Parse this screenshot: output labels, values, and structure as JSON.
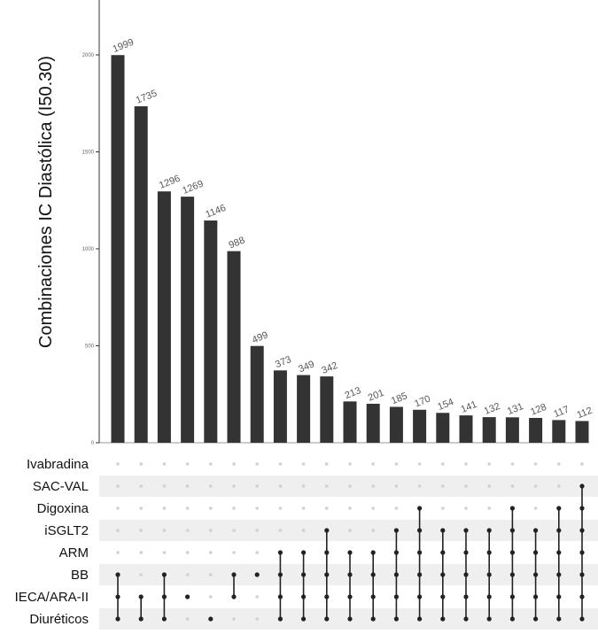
{
  "chart_data": {
    "type": "bar",
    "subtype": "upset",
    "ylabel": "Combinaciones IC Diastólica (I50.30)",
    "ylim": [
      0,
      2200
    ],
    "yticks": [
      0,
      500,
      1000,
      1500,
      2000
    ],
    "values": [
      1999,
      1735,
      1296,
      1269,
      1146,
      988,
      499,
      373,
      349,
      342,
      213,
      201,
      185,
      170,
      154,
      141,
      132,
      131,
      128,
      117,
      112
    ],
    "sets": [
      "Ivabradina",
      "SAC-VAL",
      "Digoxina",
      "iSGLT2",
      "ARM",
      "BB",
      "IECA/ARA-II",
      "Diuréticos"
    ],
    "combinations": [
      [
        "BB",
        "IECA/ARA-II",
        "Diuréticos"
      ],
      [
        "IECA/ARA-II",
        "Diuréticos"
      ],
      [
        "BB",
        "IECA/ARA-II",
        "Diuréticos"
      ],
      [
        "IECA/ARA-II"
      ],
      [
        "Diuréticos"
      ],
      [
        "BB",
        "IECA/ARA-II"
      ],
      [
        "BB"
      ],
      [
        "ARM",
        "BB",
        "IECA/ARA-II",
        "Diuréticos"
      ],
      [
        "ARM",
        "BB",
        "IECA/ARA-II",
        "Diuréticos"
      ],
      [
        "iSGLT2",
        "ARM",
        "BB",
        "IECA/ARA-II",
        "Diuréticos"
      ],
      [
        "ARM",
        "BB",
        "IECA/ARA-II",
        "Diuréticos"
      ],
      [
        "ARM",
        "BB",
        "IECA/ARA-II",
        "Diuréticos"
      ],
      [
        "iSGLT2",
        "ARM",
        "BB",
        "IECA/ARA-II",
        "Diuréticos"
      ],
      [
        "Digoxina",
        "iSGLT2",
        "ARM",
        "BB",
        "IECA/ARA-II",
        "Diuréticos"
      ],
      [
        "iSGLT2",
        "ARM",
        "BB",
        "IECA/ARA-II",
        "Diuréticos"
      ],
      [
        "iSGLT2",
        "ARM",
        "BB",
        "IECA/ARA-II",
        "Diuréticos"
      ],
      [
        "iSGLT2",
        "ARM",
        "BB",
        "IECA/ARA-II",
        "Diuréticos"
      ],
      [
        "Digoxina",
        "iSGLT2",
        "ARM",
        "BB",
        "IECA/ARA-II",
        "Diuréticos"
      ],
      [
        "iSGLT2",
        "ARM",
        "BB",
        "IECA/ARA-II",
        "Diuréticos"
      ],
      [
        "Digoxina",
        "iSGLT2",
        "ARM",
        "BB",
        "IECA/ARA-II",
        "Diuréticos"
      ],
      [
        "SAC-VAL",
        "Digoxina",
        "iSGLT2",
        "ARM",
        "BB",
        "IECA/ARA-II",
        "Diuréticos"
      ]
    ],
    "bar_color": "#333333",
    "dot_active_color": "#222222",
    "dot_inactive_color": "#d0d0d0",
    "stripe_color": "#efefef"
  }
}
